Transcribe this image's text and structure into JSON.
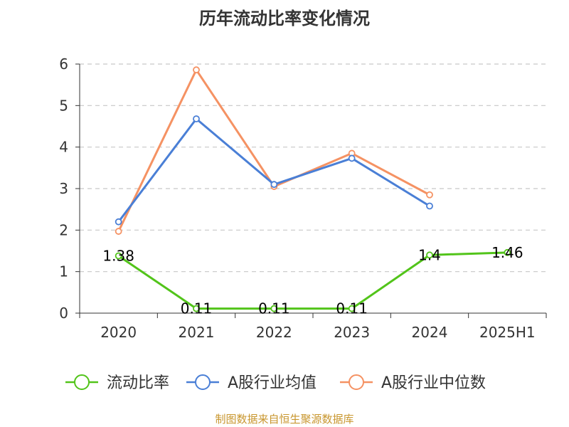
{
  "chart_data": {
    "type": "line",
    "title": "历年流动比率变化情况",
    "categories": [
      "2020",
      "2021",
      "2022",
      "2023",
      "2024",
      "2025H1"
    ],
    "ylim": [
      0,
      6
    ],
    "yticks": [
      0,
      1,
      2,
      3,
      4,
      5,
      6
    ],
    "grid": true,
    "legend_position": "bottom",
    "series": [
      {
        "name": "流动比率",
        "color": "#52c41a",
        "values": [
          1.38,
          0.11,
          0.11,
          0.11,
          1.4,
          1.46
        ],
        "data_labels": [
          "1.38",
          "0.11",
          "0.11",
          "0.11",
          "1.4",
          "1.46"
        ]
      },
      {
        "name": "A股行业均值",
        "color": "#4a7fd6",
        "values": [
          2.2,
          4.68,
          3.1,
          3.73,
          2.58,
          null
        ]
      },
      {
        "name": "A股行业中位数",
        "color": "#f59263",
        "values": [
          1.97,
          5.86,
          3.05,
          3.85,
          2.85,
          null
        ]
      }
    ]
  },
  "source": "制图数据来自恒生聚源数据库"
}
